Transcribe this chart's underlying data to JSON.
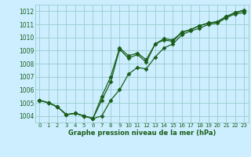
{
  "title": "Graphe pression niveau de la mer (hPa)",
  "bg_color": "#cceeff",
  "grid_color": "#99cccc",
  "line_color": "#1a5e1a",
  "xlim": [
    -0.5,
    23.5
  ],
  "ylim": [
    1003.5,
    1012.5
  ],
  "yticks": [
    1004,
    1005,
    1006,
    1007,
    1008,
    1009,
    1010,
    1011,
    1012
  ],
  "xticks": [
    0,
    1,
    2,
    3,
    4,
    5,
    6,
    7,
    8,
    9,
    10,
    11,
    12,
    13,
    14,
    15,
    16,
    17,
    18,
    19,
    20,
    21,
    22,
    23
  ],
  "series1": [
    1005.2,
    1005.0,
    1004.7,
    1004.1,
    1004.2,
    1004.0,
    1003.8,
    1005.2,
    1006.6,
    1009.1,
    1008.4,
    1008.7,
    1008.1,
    1009.5,
    1009.8,
    1009.7,
    1010.4,
    1010.6,
    1010.9,
    1011.1,
    1011.2,
    1011.6,
    1011.9,
    1012.05
  ],
  "series2": [
    1005.2,
    1005.0,
    1004.7,
    1004.1,
    1004.2,
    1004.0,
    1003.8,
    1004.0,
    1005.2,
    1006.0,
    1007.2,
    1007.7,
    1007.6,
    1008.5,
    1009.2,
    1009.5,
    1010.2,
    1010.5,
    1010.7,
    1011.0,
    1011.1,
    1011.5,
    1011.8,
    1011.9
  ],
  "series3": [
    1005.2,
    1005.0,
    1004.7,
    1004.1,
    1004.2,
    1004.0,
    1003.8,
    1005.5,
    1007.0,
    1009.2,
    1008.6,
    1008.8,
    1008.3,
    1009.5,
    1009.9,
    1009.8,
    1010.4,
    1010.6,
    1010.9,
    1011.1,
    1011.2,
    1011.6,
    1011.9,
    1012.1
  ],
  "marker": "D",
  "marker_size": 2.5,
  "line_width": 0.9
}
